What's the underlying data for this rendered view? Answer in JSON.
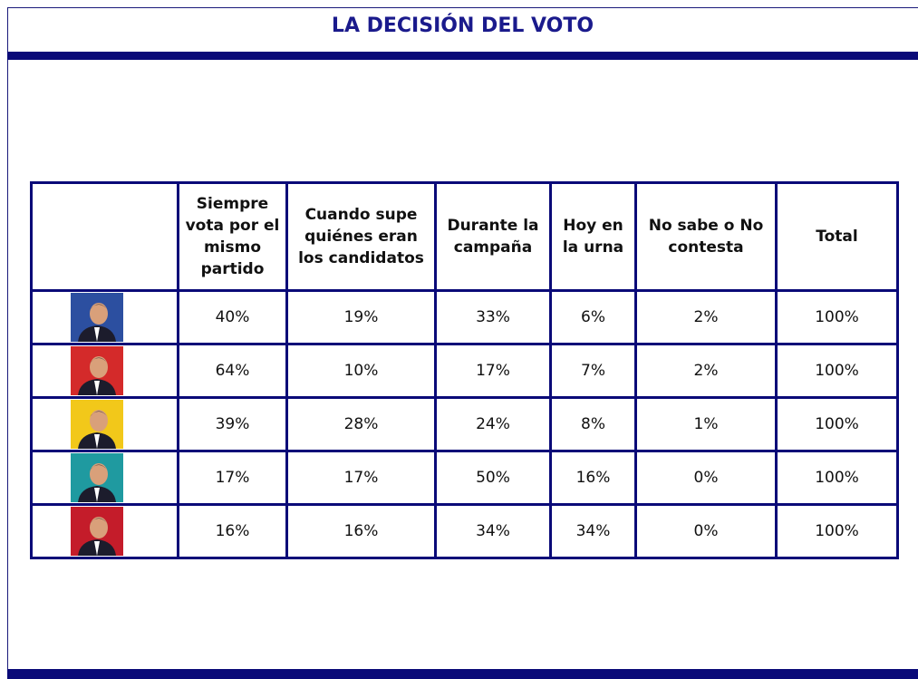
{
  "header": {
    "title": "LA DECISIÓN DEL VOTO"
  },
  "table": {
    "columns": [
      "Siempre vota por el mismo partido",
      "Cuando supe quiénes eran los candidatos",
      "Durante la campaña",
      "Hoy en la urna",
      "No sabe o No contesta",
      "Total"
    ],
    "rows": [
      [
        "40%",
        "19%",
        "33%",
        "6%",
        "2%",
        "100%"
      ],
      [
        "64%",
        "10%",
        "17%",
        "7%",
        "2%",
        "100%"
      ],
      [
        "39%",
        "28%",
        "24%",
        "8%",
        "1%",
        "100%"
      ],
      [
        "17%",
        "17%",
        "50%",
        "16%",
        "0%",
        "100%"
      ],
      [
        "16%",
        "16%",
        "34%",
        "34%",
        "0%",
        "100%"
      ]
    ]
  }
}
